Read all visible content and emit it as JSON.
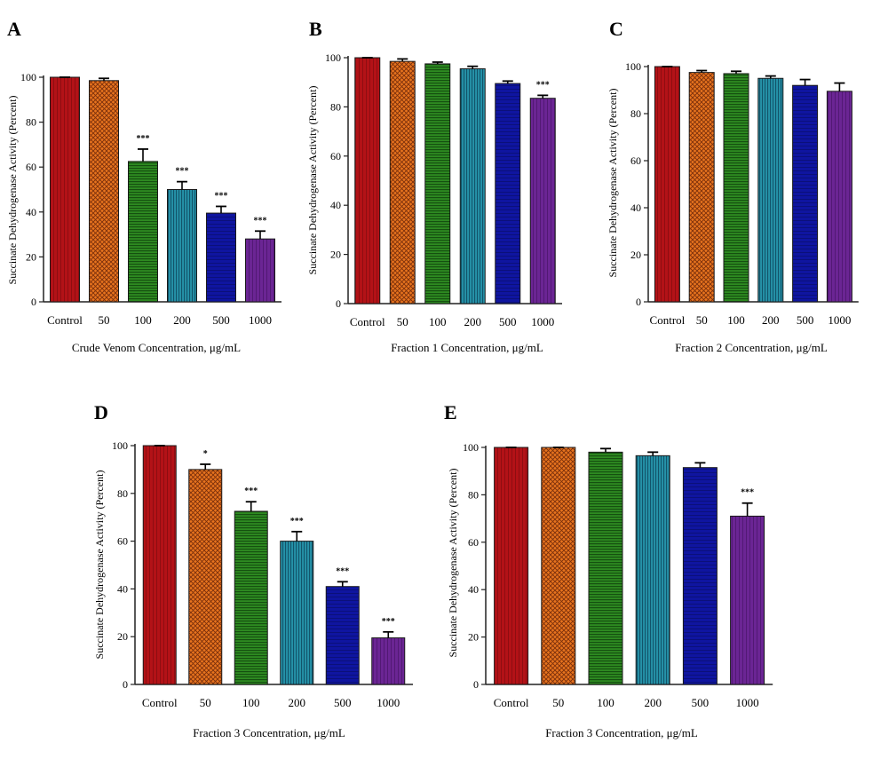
{
  "figure": {
    "panels": [
      "A",
      "B",
      "C",
      "D",
      "E"
    ]
  },
  "colors": {
    "control": "#b31217",
    "c50": "#e8741e",
    "c100": "#2e8b21",
    "c200": "#2592a8",
    "c500": "#0f15a0",
    "c1000": "#6b2594",
    "axis": "#222222",
    "bar_outline": "#1a1a1a"
  },
  "chart_data": [
    {
      "panel": "A",
      "type": "bar",
      "categories": [
        "Control",
        "50",
        "100",
        "200",
        "500",
        "1000"
      ],
      "values": [
        100,
        98.5,
        62.5,
        50,
        39.5,
        28
      ],
      "errors": [
        0,
        1,
        5.5,
        3.5,
        3,
        3.5
      ],
      "significance": [
        "",
        "",
        "***",
        "***",
        "***",
        "***"
      ],
      "xlabel": "Crude Venom Concentration, μg/mL",
      "ylabel": "Succinate Dehydrogenase Activity (Percent)",
      "ylim": [
        0,
        100
      ],
      "yticks": [
        0,
        20,
        40,
        60,
        80,
        100
      ]
    },
    {
      "panel": "B",
      "type": "bar",
      "categories": [
        "Control",
        "50",
        "100",
        "200",
        "500",
        "1000"
      ],
      "values": [
        100,
        98.5,
        97.5,
        95.5,
        89.5,
        83.5
      ],
      "errors": [
        0,
        1,
        0.7,
        1,
        1,
        1.2
      ],
      "significance": [
        "",
        "",
        "",
        "",
        "",
        "***"
      ],
      "xlabel": "Fraction 1 Concentration, μg/mL",
      "ylabel": "Succinate Dehydrogenase Activity (Percent)",
      "ylim": [
        0,
        100
      ],
      "yticks": [
        0,
        20,
        40,
        60,
        80,
        100
      ]
    },
    {
      "panel": "C",
      "type": "bar",
      "categories": [
        "Control",
        "50",
        "100",
        "200",
        "500",
        "1000"
      ],
      "values": [
        100,
        97.5,
        97,
        95,
        92,
        89.5
      ],
      "errors": [
        0,
        0.8,
        1,
        1,
        2.5,
        3.5
      ],
      "significance": [
        "",
        "",
        "",
        "",
        "",
        ""
      ],
      "xlabel": "Fraction 2 Concentration, μg/mL",
      "ylabel": "Succinate Dehydrogenase Activity (Percent)",
      "ylim": [
        0,
        100
      ],
      "yticks": [
        0,
        20,
        40,
        60,
        80,
        100
      ]
    },
    {
      "panel": "D",
      "type": "bar",
      "categories": [
        "Control",
        "50",
        "100",
        "200",
        "500",
        "1000"
      ],
      "values": [
        100,
        90,
        72.5,
        60,
        41,
        19.5
      ],
      "errors": [
        0,
        2.2,
        4,
        4,
        2,
        2.5
      ],
      "significance": [
        "",
        "*",
        "***",
        "***",
        "***",
        "***"
      ],
      "xlabel": "Fraction 3 Concentration, μg/mL",
      "ylabel": "Succinate Dehydrogenase Activity (Percent)",
      "ylim": [
        0,
        100
      ],
      "yticks": [
        0,
        20,
        40,
        60,
        80,
        100
      ]
    },
    {
      "panel": "E",
      "type": "bar",
      "categories": [
        "Control",
        "50",
        "100",
        "200",
        "500",
        "1000"
      ],
      "values": [
        100,
        100,
        98,
        96.5,
        91.5,
        71
      ],
      "errors": [
        0,
        0,
        1.5,
        1.5,
        2,
        5.5
      ],
      "significance": [
        "",
        "",
        "",
        "",
        "",
        "***"
      ],
      "xlabel": "Fraction 3 Concentration, μg/mL",
      "ylabel": "Succinate Dehydrogenase Activity (Percent)",
      "ylim": [
        0,
        100
      ],
      "yticks": [
        0,
        20,
        40,
        60,
        80,
        100
      ]
    }
  ]
}
